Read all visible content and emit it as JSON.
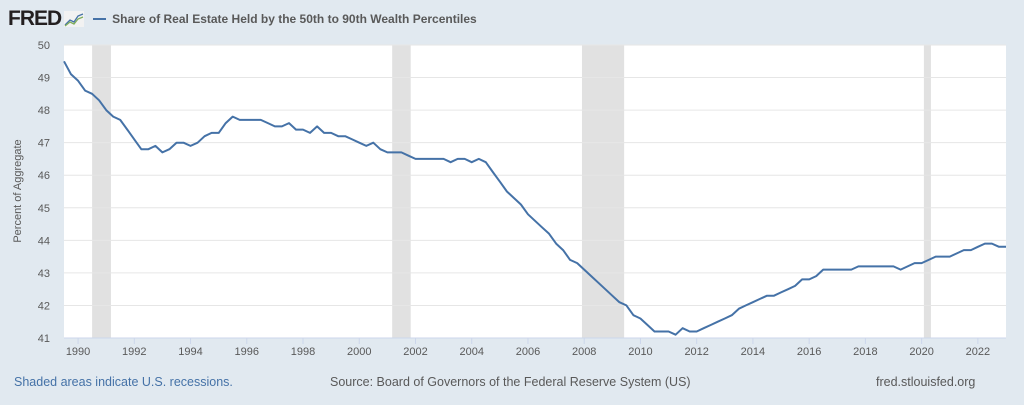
{
  "header": {
    "logo_text": "FRED",
    "logo_icon": "line-chart-icon",
    "series_title": "Share of Real Estate Held by the 50th to 90th Wealth Percentiles"
  },
  "footer": {
    "recession_note": "Shaded areas indicate U.S. recessions.",
    "source": "Source: Board of Governors of the Federal Reserve System (US)",
    "url": "fred.stlouisfed.org"
  },
  "colors": {
    "line": "#4572a7",
    "recession": "#e1e1e1",
    "background": "#e1e9f0",
    "plot": "#ffffff"
  },
  "chart_data": {
    "type": "line",
    "title": "Share of Real Estate Held by the 50th to 90th Wealth Percentiles",
    "xlabel": "",
    "ylabel": "Percent of Aggregate",
    "ylim": [
      41,
      50
    ],
    "xlim": [
      1989.5,
      2023.0
    ],
    "grid": true,
    "legend": "top-left",
    "yticks": [
      "41",
      "42",
      "43",
      "44",
      "45",
      "46",
      "47",
      "48",
      "49",
      "50"
    ],
    "xticks": [
      "1990",
      "1992",
      "1994",
      "1996",
      "1998",
      "2000",
      "2002",
      "2004",
      "2006",
      "2008",
      "2010",
      "2012",
      "2014",
      "2016",
      "2018",
      "2020",
      "2022"
    ],
    "recessions": [
      [
        1990.5,
        1991.17
      ],
      [
        2001.17,
        2001.83
      ],
      [
        2007.92,
        2009.42
      ],
      [
        2020.08,
        2020.33
      ]
    ],
    "x_start": 1989.5,
    "x_step": 0.25,
    "series": [
      {
        "name": "Share of Real Estate Held by the 50th to 90th Wealth Percentiles",
        "values": [
          49.5,
          49.1,
          48.9,
          48.6,
          48.5,
          48.3,
          48.0,
          47.8,
          47.7,
          47.4,
          47.1,
          46.8,
          46.8,
          46.9,
          46.7,
          46.8,
          47.0,
          47.0,
          46.9,
          47.0,
          47.2,
          47.3,
          47.3,
          47.6,
          47.8,
          47.7,
          47.7,
          47.7,
          47.7,
          47.6,
          47.5,
          47.5,
          47.6,
          47.4,
          47.4,
          47.3,
          47.5,
          47.3,
          47.3,
          47.2,
          47.2,
          47.1,
          47.0,
          46.9,
          47.0,
          46.8,
          46.7,
          46.7,
          46.7,
          46.6,
          46.5,
          46.5,
          46.5,
          46.5,
          46.5,
          46.4,
          46.5,
          46.5,
          46.4,
          46.5,
          46.4,
          46.1,
          45.8,
          45.5,
          45.3,
          45.1,
          44.8,
          44.6,
          44.4,
          44.2,
          43.9,
          43.7,
          43.4,
          43.3,
          43.1,
          42.9,
          42.7,
          42.5,
          42.3,
          42.1,
          42.0,
          41.7,
          41.6,
          41.4,
          41.2,
          41.2,
          41.2,
          41.1,
          41.3,
          41.2,
          41.2,
          41.3,
          41.4,
          41.5,
          41.6,
          41.7,
          41.9,
          42.0,
          42.1,
          42.2,
          42.3,
          42.3,
          42.4,
          42.5,
          42.6,
          42.8,
          42.8,
          42.9,
          43.1,
          43.1,
          43.1,
          43.1,
          43.1,
          43.2,
          43.2,
          43.2,
          43.2,
          43.2,
          43.2,
          43.1,
          43.2,
          43.3,
          43.3,
          43.4,
          43.5,
          43.5,
          43.5,
          43.6,
          43.7,
          43.7,
          43.8,
          43.9,
          43.9,
          43.8,
          43.8
        ]
      }
    ]
  }
}
